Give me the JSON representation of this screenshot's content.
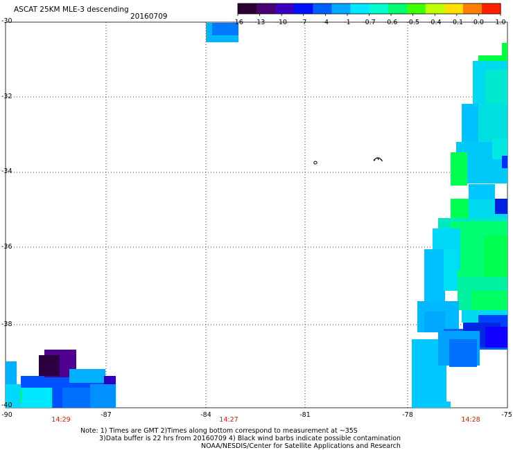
{
  "header": {
    "title": "ASCAT 25KM MLE-3 descending",
    "date": "20160709"
  },
  "colorbar": {
    "ticks": [
      "-16",
      "-13",
      "-10",
      "-7",
      "-4",
      "-1",
      "-0.7",
      "-0.6",
      "-0.5",
      "-0.4",
      "-0.1",
      "0.0",
      "1.0"
    ],
    "colors": [
      "#2a0030",
      "#4a0070",
      "#3a00c0",
      "#0010ff",
      "#0060ff",
      "#00a8ff",
      "#00e8ff",
      "#00ffd0",
      "#00ff70",
      "#40ff00",
      "#c0ff00",
      "#ffe000",
      "#ff8000",
      "#ff2000"
    ]
  },
  "map": {
    "lat_labels": [
      "-30",
      "-32",
      "-34",
      "-36",
      "-38",
      "-40"
    ],
    "lon_labels": [
      "-90",
      "-87",
      "-84",
      "-81",
      "-78",
      "-75"
    ],
    "time_labels": [
      "14:29",
      "14:27",
      "14:28"
    ]
  },
  "notes": {
    "line1": "Note: 1) Times are GMT 2)Times along bottom correspond to measurement at ~35S",
    "line2": "3)Data buffer is 22 hrs from 20160709 4) Black wind barbs indicate possible contamination",
    "line3": "NOAA/NESDIS/Center for Satellite Applications and Research"
  }
}
